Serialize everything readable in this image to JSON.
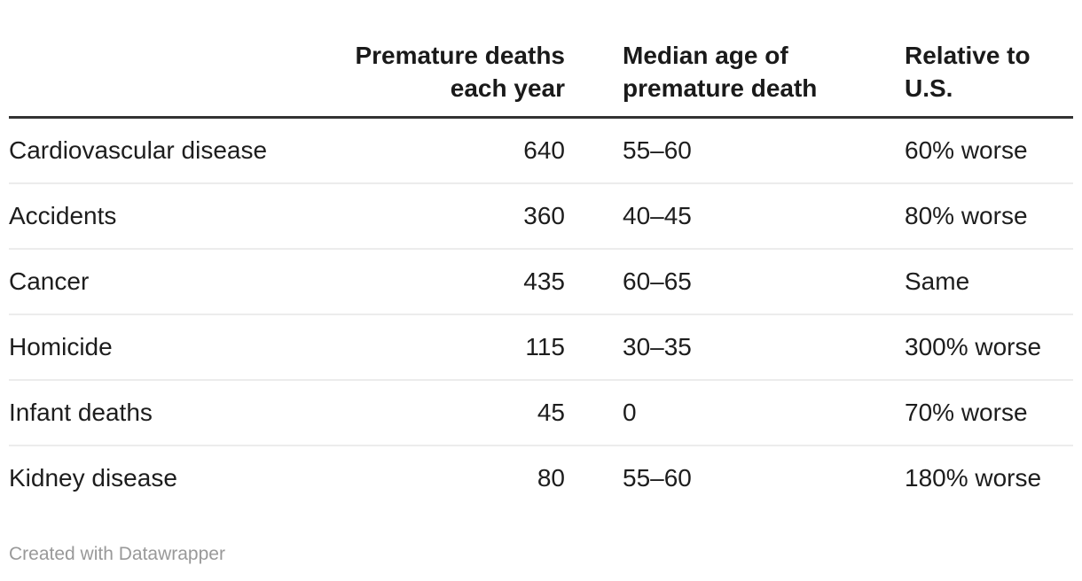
{
  "chart_data": {
    "type": "table",
    "columns": [
      {
        "header": "",
        "align": "left"
      },
      {
        "header": "Premature deaths\neach year",
        "align": "right"
      },
      {
        "header": "Median age of\npremature death",
        "align": "left"
      },
      {
        "header": "Relative to\nU.S.",
        "align": "left"
      }
    ],
    "rows": [
      {
        "cause": "Cardiovascular disease",
        "premature_deaths_each_year": "640",
        "median_age_of_premature_death": "55–60",
        "relative_to_us": "60% worse"
      },
      {
        "cause": "Accidents",
        "premature_deaths_each_year": "360",
        "median_age_of_premature_death": "40–45",
        "relative_to_us": "80% worse"
      },
      {
        "cause": "Cancer",
        "premature_deaths_each_year": "435",
        "median_age_of_premature_death": "60–65",
        "relative_to_us": "Same"
      },
      {
        "cause": "Homicide",
        "premature_deaths_each_year": "115",
        "median_age_of_premature_death": "30–35",
        "relative_to_us": "300% worse"
      },
      {
        "cause": "Infant deaths",
        "premature_deaths_each_year": "45",
        "median_age_of_premature_death": "0",
        "relative_to_us": "70% worse"
      },
      {
        "cause": "Kidney disease",
        "premature_deaths_each_year": "80",
        "median_age_of_premature_death": "55–60",
        "relative_to_us": "180% worse"
      }
    ]
  },
  "footer": {
    "attribution": "Created with Datawrapper"
  },
  "colors": {
    "header_rule": "#333333",
    "row_divider": "#ececec",
    "text": "#1d1d1d",
    "muted_text": "#999999",
    "background": "#ffffff"
  }
}
